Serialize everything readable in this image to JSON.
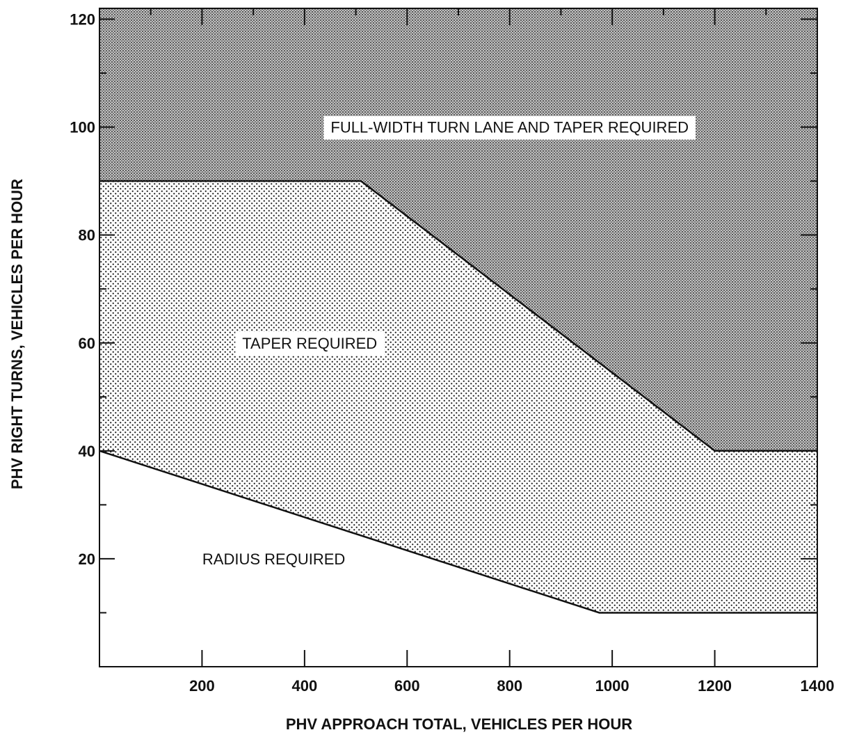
{
  "chart_data": {
    "type": "area",
    "xlabel": "PHV APPROACH TOTAL, VEHICLES PER HOUR",
    "ylabel": "PHV RIGHT TURNS, VEHICLES PER HOUR",
    "xlim": [
      0,
      1400
    ],
    "ylim": [
      0,
      122
    ],
    "x_ticks": [
      200,
      400,
      600,
      800,
      1000,
      1200,
      1400
    ],
    "x_tick_labels": [
      "200",
      "400",
      "600",
      "800",
      "1000",
      "1200",
      "1400"
    ],
    "y_ticks": [
      20,
      40,
      60,
      80,
      100,
      120
    ],
    "y_tick_labels": [
      "20",
      "40",
      "60",
      "80",
      "100",
      "120"
    ],
    "x_minor_ticks": [
      100,
      300,
      500,
      700,
      900,
      1100,
      1300
    ],
    "y_minor_ticks": [
      10,
      30,
      50,
      70,
      90,
      110
    ],
    "grid": false,
    "boundaries": [
      {
        "name": "radius/taper boundary",
        "x": [
          0,
          975,
          1400
        ],
        "y": [
          40,
          10,
          10
        ]
      },
      {
        "name": "taper/full-width boundary",
        "x": [
          0,
          510,
          1200,
          1400
        ],
        "y": [
          90,
          90,
          40,
          40
        ]
      }
    ],
    "regions": [
      {
        "label": "RADIUS REQUIRED",
        "fill": "#ffffff",
        "label_at": [
          340,
          20
        ]
      },
      {
        "label": "TAPER REQUIRED",
        "fill": "dots",
        "label_at": [
          410,
          60
        ]
      },
      {
        "label": "FULL-WIDTH TURN LANE AND TAPER REQUIRED",
        "fill": "crosshatch",
        "label_at": [
          800,
          100
        ]
      }
    ],
    "colors": {
      "ink": "#111111",
      "hatch_bg": "#b8b8b8",
      "dot": "#222222"
    }
  }
}
